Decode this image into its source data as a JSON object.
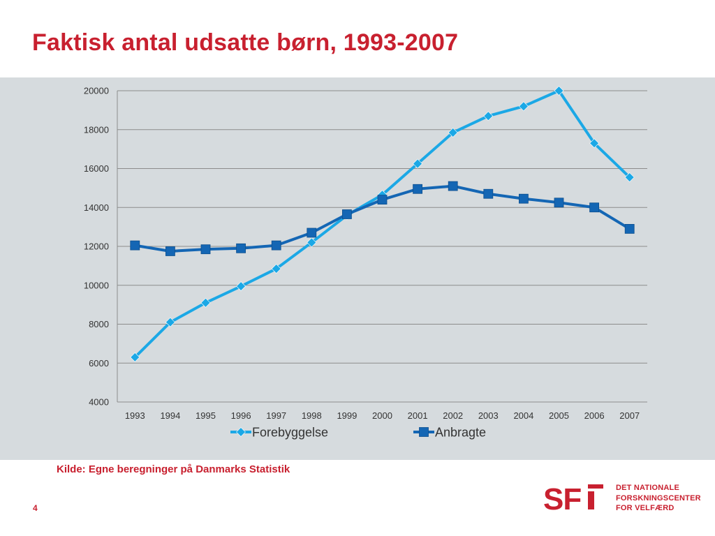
{
  "slide": {
    "title": "Faktisk antal udsatte børn, 1993-2007",
    "source": "Kilde: Egne beregninger på Danmarks Statistik",
    "page_number": "4"
  },
  "logo": {
    "mark": "SFI",
    "text_lines": [
      "DET NATIONALE",
      "FORSKNINGSCENTER",
      "FOR VELFÆRD"
    ],
    "color": "#c8202f"
  },
  "chart_data": {
    "type": "line",
    "title": "",
    "xlabel": "",
    "ylabel": "",
    "categories": [
      "1993",
      "1994",
      "1995",
      "1996",
      "1997",
      "1998",
      "1999",
      "2000",
      "2001",
      "2002",
      "2003",
      "2004",
      "2005",
      "2006",
      "2007"
    ],
    "series": [
      {
        "name": "Forebyggelse",
        "marker": "diamond",
        "color": "#1ba8e6",
        "values": [
          6300,
          8100,
          9100,
          9950,
          10850,
          12200,
          13600,
          14650,
          16250,
          17850,
          18700,
          19200,
          20000,
          17300,
          15550
        ]
      },
      {
        "name": "Anbragte",
        "marker": "square",
        "color": "#1466b4",
        "values": [
          12050,
          11750,
          11850,
          11900,
          12050,
          12700,
          13650,
          14400,
          14950,
          15100,
          14700,
          14450,
          14250,
          14000,
          12900
        ]
      }
    ],
    "ylim": [
      4000,
      20000
    ],
    "yticks": [
      "4000",
      "6000",
      "8000",
      "10000",
      "12000",
      "14000",
      "16000",
      "18000",
      "20000"
    ],
    "grid": true,
    "legend_position": "bottom",
    "background_color": "#d6dbde",
    "gridline_color": "#8c8c8c"
  }
}
